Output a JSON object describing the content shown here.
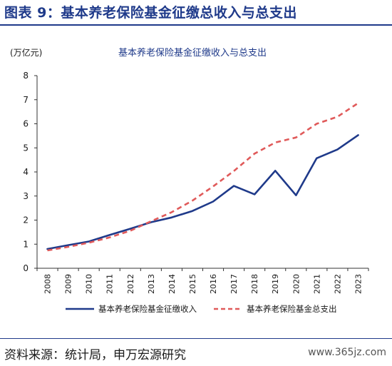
{
  "figure": {
    "title": "图表 9：基本养老保险基金征缴总收入与总支出",
    "source": "资料来源：统计局，申万宏源研究",
    "watermark": "www.365jz.com"
  },
  "chart_data": {
    "type": "line",
    "title": "基本养老保险基金征缴收入与总支出",
    "ylabel": "(万亿元)",
    "xlabel": "",
    "ylim": [
      0,
      8
    ],
    "yticks": [
      0,
      1,
      2,
      3,
      4,
      5,
      6,
      7,
      8
    ],
    "categories": [
      "2008",
      "2009",
      "2010",
      "2011",
      "2012",
      "2013",
      "2014",
      "2015",
      "2016",
      "2017",
      "2018",
      "2019",
      "2020",
      "2021",
      "2022",
      "2023"
    ],
    "grid": false,
    "legend_position": "bottom",
    "series": [
      {
        "name": "基本养老保险基金征缴收入",
        "color": "#1f3a8a",
        "style": "solid",
        "values": [
          0.8,
          0.96,
          1.11,
          1.38,
          1.64,
          1.91,
          2.11,
          2.38,
          2.77,
          3.42,
          3.07,
          4.05,
          3.03,
          4.57,
          4.93,
          5.53
        ]
      },
      {
        "name": "基本养老保险基金总支出",
        "color": "#e05a5a",
        "style": "dashed",
        "values": [
          0.74,
          0.89,
          1.06,
          1.28,
          1.56,
          1.95,
          2.33,
          2.81,
          3.4,
          4.04,
          4.76,
          5.22,
          5.43,
          6.0,
          6.29,
          6.86
        ]
      }
    ]
  }
}
